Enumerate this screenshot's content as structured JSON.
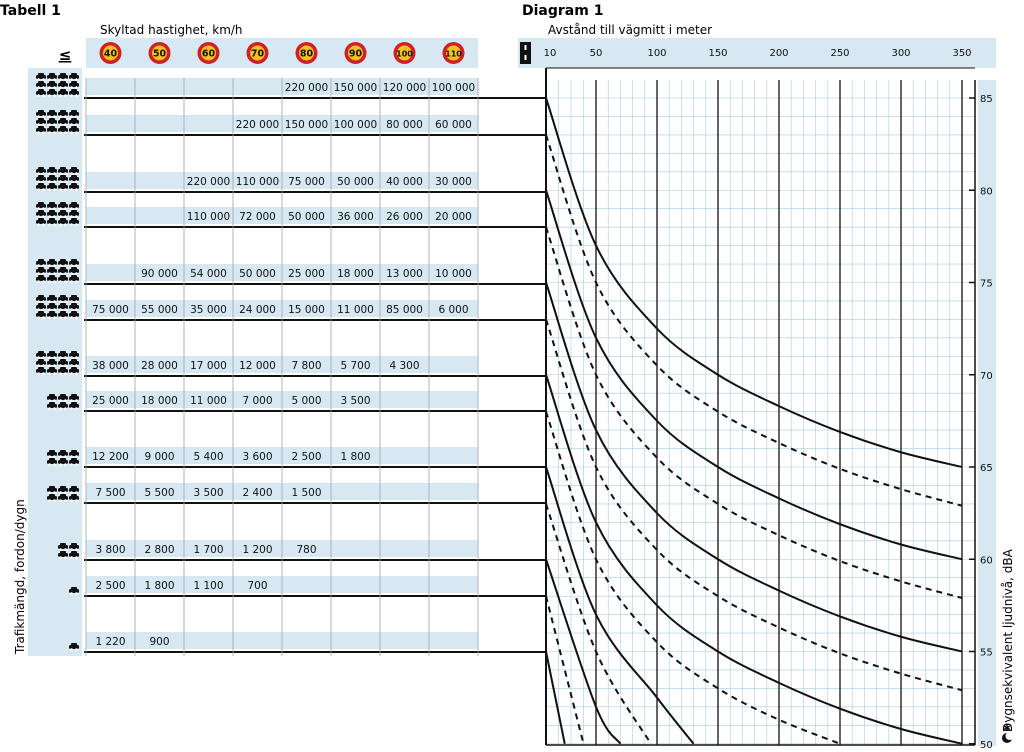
{
  "table": {
    "title": "Tabell 1",
    "speed_label": "Skyltad hastighet, km/h",
    "le_symbol": "≤",
    "speeds": [
      "40",
      "50",
      "60",
      "70",
      "80",
      "90",
      "100",
      "110"
    ],
    "traffic_label": "Trafikmängd, fordon/dygn",
    "rows": [
      {
        "cars": 5,
        "values": [
          "",
          "",
          "",
          "",
          "220 000",
          "150 000",
          "120 000",
          "100 000"
        ]
      },
      {
        "cars": 5,
        "values": [
          "",
          "",
          "",
          "220 000",
          "150 000",
          "100 000",
          "80 000",
          "60 000"
        ]
      },
      {
        "cars": 5,
        "values": [
          "",
          "",
          "220 000",
          "110 000",
          "75 000",
          "50 000",
          "40 000",
          "30 000"
        ]
      },
      {
        "cars": 5,
        "values": [
          "",
          "",
          "110 000",
          "72 000",
          "50 000",
          "36 000",
          "26 000",
          "20 000"
        ]
      },
      {
        "cars": 4,
        "values": [
          "",
          "90 000",
          "54 000",
          "50 000",
          "25 000",
          "18 000",
          "13 000",
          "10 000"
        ]
      },
      {
        "cars": 4,
        "values": [
          "75 000",
          "55 000",
          "35 000",
          "24 000",
          "15 000",
          "11 000",
          "85 000",
          "6 000"
        ]
      },
      {
        "cars": 4,
        "values": [
          "38 000",
          "28 000",
          "17 000",
          "12 000",
          "7 800",
          "5 700",
          "4 300",
          ""
        ]
      },
      {
        "cars": 3,
        "values": [
          "25 000",
          "18 000",
          "11 000",
          "7 000",
          "5 000",
          "3 500",
          "",
          ""
        ]
      },
      {
        "cars": 3,
        "values": [
          "12 200",
          "9 000",
          "5 400",
          "3 600",
          "2 500",
          "1 800",
          "",
          ""
        ]
      },
      {
        "cars": 3,
        "values": [
          "7 500",
          "5 500",
          "3 500",
          "2 400",
          "1 500",
          "",
          "",
          ""
        ]
      },
      {
        "cars": 2,
        "values": [
          "3 800",
          "2 800",
          "1 700",
          "1 200",
          "780",
          "",
          "",
          ""
        ]
      },
      {
        "cars": 1,
        "values": [
          "2 500",
          "1 800",
          "1 100",
          "700",
          "",
          "",
          "",
          ""
        ]
      },
      {
        "cars": 1,
        "values": [
          "1 220",
          "900",
          "",
          "",
          "",
          "",
          "",
          ""
        ]
      }
    ]
  },
  "chart_data": {
    "type": "line",
    "title": "Diagram 1",
    "xlabel": "Avstånd till vägmitt i meter",
    "ylabel": "Dygnsekvivalent ljudnivå, dBA",
    "x_ticks": [
      10,
      50,
      100,
      150,
      200,
      250,
      300,
      350
    ],
    "x_ticks_labels": [
      "10",
      "50",
      "100",
      "150",
      "200",
      "250",
      "300",
      "350"
    ],
    "y_ticks": [
      85,
      80,
      75,
      70,
      65,
      60,
      55,
      50
    ],
    "y_ticks_labels": [
      "85",
      "80",
      "75",
      "70",
      "65",
      "60",
      "55",
      "50"
    ],
    "xlim": [
      10,
      350
    ],
    "ylim": [
      50,
      86
    ],
    "grid": true,
    "series": [
      {
        "style": "solid",
        "points": [
          [
            10,
            85
          ],
          [
            50,
            77
          ],
          [
            100,
            72.5
          ],
          [
            150,
            70
          ],
          [
            200,
            68.3
          ],
          [
            250,
            66.9
          ],
          [
            300,
            65.8
          ],
          [
            350,
            65
          ]
        ]
      },
      {
        "style": "dashed",
        "points": [
          [
            10,
            83
          ],
          [
            50,
            75
          ],
          [
            100,
            70.5
          ],
          [
            150,
            68
          ],
          [
            200,
            66.3
          ],
          [
            250,
            64.9
          ],
          [
            300,
            63.8
          ],
          [
            350,
            62.9
          ]
        ]
      },
      {
        "style": "solid",
        "points": [
          [
            10,
            80
          ],
          [
            50,
            72
          ],
          [
            100,
            67.5
          ],
          [
            150,
            65
          ],
          [
            200,
            63.3
          ],
          [
            250,
            61.9
          ],
          [
            300,
            60.8
          ],
          [
            350,
            60
          ]
        ]
      },
      {
        "style": "dashed",
        "points": [
          [
            10,
            78
          ],
          [
            50,
            70
          ],
          [
            100,
            65.5
          ],
          [
            150,
            63
          ],
          [
            200,
            61.3
          ],
          [
            250,
            59.9
          ],
          [
            300,
            58.8
          ],
          [
            350,
            57.9
          ]
        ]
      },
      {
        "style": "solid",
        "points": [
          [
            10,
            75
          ],
          [
            50,
            67
          ],
          [
            100,
            62.5
          ],
          [
            150,
            60
          ],
          [
            200,
            58.3
          ],
          [
            250,
            56.9
          ],
          [
            300,
            55.8
          ],
          [
            350,
            55
          ]
        ]
      },
      {
        "style": "dashed",
        "points": [
          [
            10,
            73
          ],
          [
            50,
            65
          ],
          [
            100,
            60.5
          ],
          [
            150,
            58
          ],
          [
            200,
            56.3
          ],
          [
            250,
            54.9
          ],
          [
            300,
            53.8
          ],
          [
            350,
            52.9
          ]
        ]
      },
      {
        "style": "solid",
        "points": [
          [
            10,
            70
          ],
          [
            50,
            62
          ],
          [
            100,
            57.5
          ],
          [
            150,
            55
          ],
          [
            200,
            53.3
          ],
          [
            250,
            51.9
          ],
          [
            300,
            50.8
          ],
          [
            350,
            50
          ]
        ]
      },
      {
        "style": "dashed",
        "points": [
          [
            10,
            68
          ],
          [
            50,
            60
          ],
          [
            100,
            55.5
          ],
          [
            150,
            53
          ],
          [
            200,
            51.3
          ],
          [
            250,
            50
          ]
        ]
      },
      {
        "style": "solid",
        "points": [
          [
            10,
            65
          ],
          [
            50,
            57
          ],
          [
            100,
            52.5
          ],
          [
            130,
            50
          ]
        ]
      },
      {
        "style": "dashed",
        "points": [
          [
            10,
            63
          ],
          [
            50,
            55
          ],
          [
            95,
            50
          ]
        ]
      },
      {
        "style": "solid",
        "points": [
          [
            10,
            60
          ],
          [
            50,
            52
          ],
          [
            70,
            50
          ]
        ]
      },
      {
        "style": "dashed",
        "points": [
          [
            10,
            58
          ],
          [
            40,
            50
          ]
        ]
      },
      {
        "style": "solid",
        "points": [
          [
            10,
            55
          ],
          [
            25,
            50
          ]
        ]
      }
    ]
  },
  "colors": {
    "panel": "#d7e8f3",
    "grid_fine": "#a8cbe2",
    "sign_fill": "#f4c21c",
    "sign_ring": "#d11f27",
    "ink": "#111111"
  }
}
